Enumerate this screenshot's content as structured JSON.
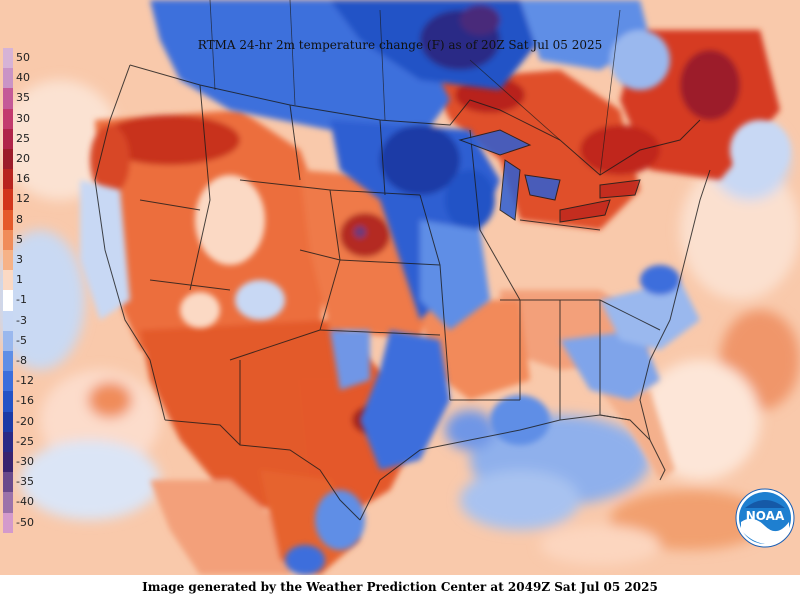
{
  "title": "RTMA 24-hr 2m temperature change (F) as of 20Z Sat Jul 05 2025",
  "footer": "Image generated by the Weather Prediction Center at 2049Z Sat Jul 05 2025",
  "logo_text": "NOAA",
  "legend": [
    {
      "label": "50",
      "color": "#d6b3d6"
    },
    {
      "label": "40",
      "color": "#c994c6"
    },
    {
      "label": "35",
      "color": "#c45a98"
    },
    {
      "label": "30",
      "color": "#c23b6e"
    },
    {
      "label": "25",
      "color": "#b0244a"
    },
    {
      "label": "20",
      "color": "#9c1c2a"
    },
    {
      "label": "16",
      "color": "#b8241e"
    },
    {
      "label": "12",
      "color": "#d2361c"
    },
    {
      "label": "8",
      "color": "#e55a2a"
    },
    {
      "label": "5",
      "color": "#f08c5a"
    },
    {
      "label": "3",
      "color": "#f6b287"
    },
    {
      "label": "1",
      "color": "#fbd9c4"
    },
    {
      "label": "-1",
      "color": "#ffffff"
    },
    {
      "label": "-3",
      "color": "#c8d8f4"
    },
    {
      "label": "-5",
      "color": "#9ab8ee"
    },
    {
      "label": "-8",
      "color": "#5f8ee6"
    },
    {
      "label": "-12",
      "color": "#3c6edc"
    },
    {
      "label": "-16",
      "color": "#2452c6"
    },
    {
      "label": "-20",
      "color": "#1c3aa6"
    },
    {
      "label": "-25",
      "color": "#2a2a86"
    },
    {
      "label": "-30",
      "color": "#3a2470"
    },
    {
      "label": "-35",
      "color": "#6a4a8c"
    },
    {
      "label": "-40",
      "color": "#9c72aa"
    },
    {
      "label": "-50",
      "color": "#d49acc"
    }
  ]
}
